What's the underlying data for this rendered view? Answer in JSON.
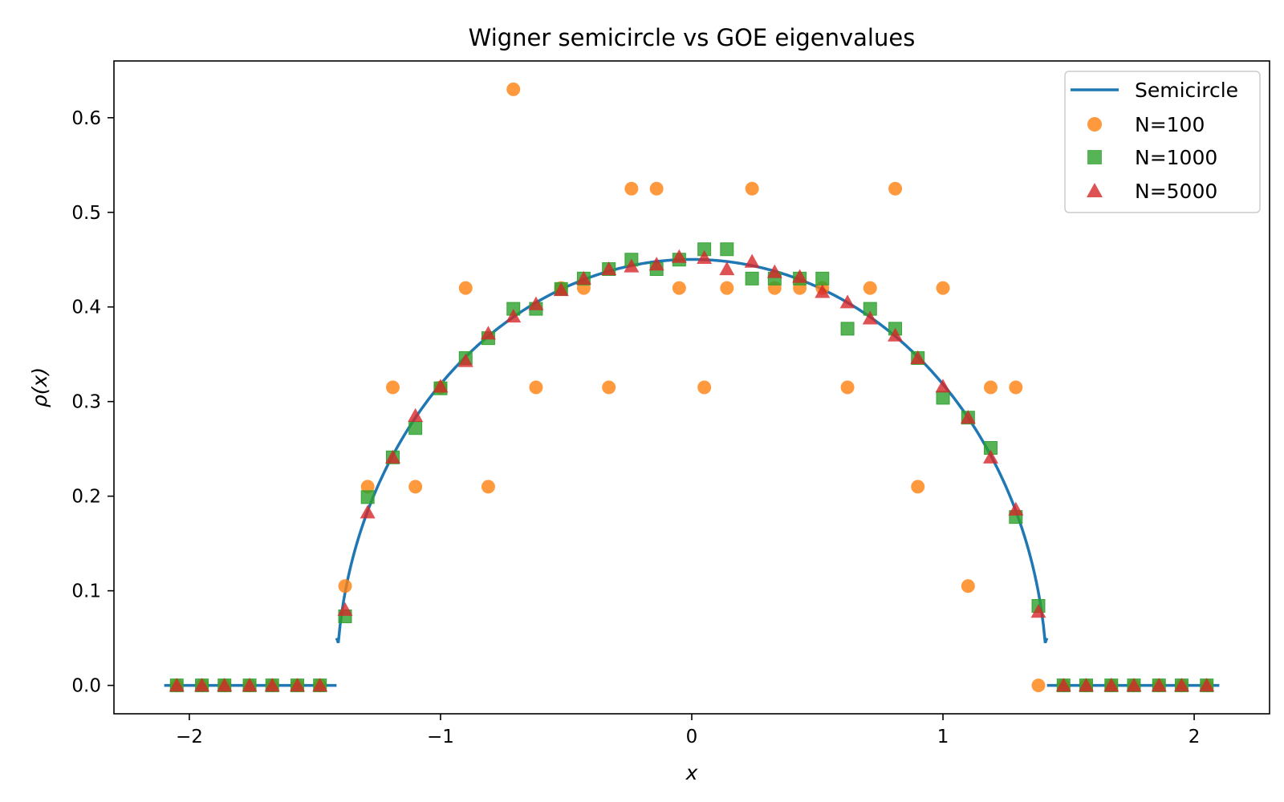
{
  "chart_data": {
    "type": "scatter",
    "title": "Wigner semicircle vs GOE eigenvalues",
    "xlabel": "x",
    "ylabel": "ρ(x)",
    "xlim": [
      -2.3,
      2.3
    ],
    "ylim": [
      -0.03,
      0.66
    ],
    "xticks": [
      -2,
      -1,
      0,
      1,
      2
    ],
    "xtick_labels": [
      "−2",
      "−1",
      "0",
      "1",
      "2"
    ],
    "yticks": [
      0.0,
      0.1,
      0.2,
      0.3,
      0.4,
      0.5,
      0.6
    ],
    "ytick_labels": [
      "0.0",
      "0.1",
      "0.2",
      "0.3",
      "0.4",
      "0.5",
      "0.6"
    ],
    "grid": false,
    "legend_position": "top-right",
    "colors": {
      "semicircle": "#1f77b4",
      "n100": "#ff7f0e",
      "n1000": "#2ca02c",
      "n5000": "#d62728"
    },
    "curve": {
      "name": "Semicircle",
      "radius": 1.414,
      "support_end_value": 0.05,
      "zero_segments": [
        [
          -2.1,
          -1.414
        ],
        [
          1.414,
          2.1
        ]
      ]
    },
    "series": [
      {
        "name": "N=100",
        "marker": "circle",
        "x": [
          -2.05,
          -1.95,
          -1.86,
          -1.76,
          -1.67,
          -1.57,
          -1.48,
          -1.38,
          -1.29,
          -1.19,
          -1.1,
          -1.0,
          -0.9,
          -0.81,
          -0.71,
          -0.62,
          -0.52,
          -0.43,
          -0.33,
          -0.24,
          -0.14,
          -0.05,
          0.05,
          0.14,
          0.24,
          0.33,
          0.43,
          0.52,
          0.62,
          0.71,
          0.81,
          0.9,
          1.0,
          1.1,
          1.19,
          1.29,
          1.38,
          1.48,
          1.57,
          1.67,
          1.76,
          1.86,
          1.95,
          2.05
        ],
        "y": [
          0,
          0,
          0,
          0,
          0,
          0,
          0,
          0.105,
          0.21,
          0.315,
          0.21,
          0.315,
          0.42,
          0.21,
          0.63,
          0.315,
          0.42,
          0.42,
          0.315,
          0.525,
          0.525,
          0.42,
          0.315,
          0.42,
          0.525,
          0.42,
          0.42,
          0.42,
          0.315,
          0.42,
          0.525,
          0.21,
          0.42,
          0.105,
          0.315,
          0.315,
          0,
          0,
          0,
          0,
          0,
          0,
          0,
          0
        ]
      },
      {
        "name": "N=1000",
        "marker": "square",
        "x": [
          -2.05,
          -1.95,
          -1.86,
          -1.76,
          -1.67,
          -1.57,
          -1.48,
          -1.38,
          -1.29,
          -1.19,
          -1.1,
          -1.0,
          -0.9,
          -0.81,
          -0.71,
          -0.62,
          -0.52,
          -0.43,
          -0.33,
          -0.24,
          -0.14,
          -0.05,
          0.05,
          0.14,
          0.24,
          0.33,
          0.43,
          0.52,
          0.62,
          0.71,
          0.81,
          0.9,
          1.0,
          1.1,
          1.19,
          1.29,
          1.38,
          1.48,
          1.57,
          1.67,
          1.76,
          1.86,
          1.95,
          2.05
        ],
        "y": [
          0,
          0,
          0,
          0,
          0,
          0,
          0,
          0.073,
          0.199,
          0.241,
          0.272,
          0.314,
          0.346,
          0.367,
          0.398,
          0.398,
          0.419,
          0.43,
          0.44,
          0.45,
          0.44,
          0.45,
          0.461,
          0.461,
          0.43,
          0.43,
          0.43,
          0.43,
          0.377,
          0.398,
          0.377,
          0.346,
          0.304,
          0.283,
          0.251,
          0.178,
          0.084,
          0,
          0,
          0,
          0,
          0,
          0,
          0
        ]
      },
      {
        "name": "N=5000",
        "marker": "triangle",
        "x": [
          -2.05,
          -1.95,
          -1.86,
          -1.76,
          -1.67,
          -1.57,
          -1.48,
          -1.38,
          -1.29,
          -1.19,
          -1.1,
          -1.0,
          -0.9,
          -0.81,
          -0.71,
          -0.62,
          -0.52,
          -0.43,
          -0.33,
          -0.24,
          -0.14,
          -0.05,
          0.05,
          0.14,
          0.24,
          0.33,
          0.43,
          0.52,
          0.62,
          0.71,
          0.81,
          0.9,
          1.0,
          1.1,
          1.19,
          1.29,
          1.38,
          1.48,
          1.57,
          1.67,
          1.76,
          1.86,
          1.95,
          2.05
        ],
        "y": [
          0,
          0,
          0,
          0,
          0,
          0,
          0,
          0.08,
          0.183,
          0.241,
          0.285,
          0.316,
          0.343,
          0.372,
          0.39,
          0.403,
          0.418,
          0.43,
          0.44,
          0.443,
          0.445,
          0.453,
          0.452,
          0.44,
          0.448,
          0.437,
          0.432,
          0.416,
          0.405,
          0.388,
          0.37,
          0.346,
          0.316,
          0.283,
          0.241,
          0.186,
          0.078,
          0,
          0,
          0,
          0,
          0,
          0,
          0
        ]
      }
    ]
  }
}
